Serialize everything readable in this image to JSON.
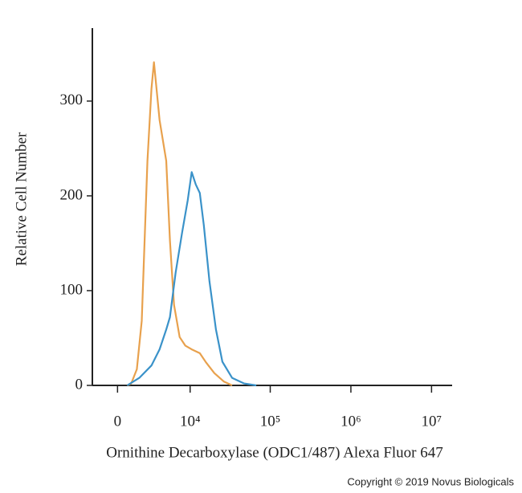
{
  "chart_data": {
    "type": "line",
    "x_label": "Ornithine Decarboxylase (ODC1/487) Alexa Fluor 647",
    "y_label": "Relative Cell Number",
    "copyright": "Copyright © 2019 Novus Biologicals",
    "xscale": "asinh",
    "xlim": [
      -2000,
      18000000
    ],
    "xticks": [
      0,
      {
        "value": 10000,
        "label": "10⁴"
      },
      {
        "value": 100000,
        "label": "10⁵"
      },
      {
        "value": 1000000,
        "label": "10⁶"
      },
      {
        "value": 10000000,
        "label": "10⁷"
      }
    ],
    "ylim": [
      0,
      377
    ],
    "yticks": [
      0,
      100,
      200,
      300
    ],
    "series": [
      {
        "color": "#e8a14d",
        "x": [
          715,
          1027,
          1486,
          1915,
          2459,
          2887,
          3166,
          3866,
          4818,
          5425,
          6153,
          7311,
          8660,
          10481,
          13263,
          15981,
          20175,
          26644,
          33573
        ],
        "values": [
          0,
          2,
          17,
          68,
          237,
          313,
          341,
          280,
          237,
          153,
          85,
          51,
          42,
          38,
          34,
          24,
          13,
          4,
          0
        ]
      },
      {
        "color": "#3a92c9",
        "x": [
          715,
          1694,
          2887,
          3866,
          4818,
          5425,
          6466,
          7865,
          9305,
          10481,
          11795,
          13263,
          14913,
          17551,
          21147,
          25442,
          33573,
          47458,
          67096
        ],
        "values": [
          0,
          8,
          21,
          38,
          59,
          72,
          119,
          161,
          195,
          225,
          212,
          203,
          169,
          110,
          59,
          25,
          8,
          2,
          0
        ]
      }
    ]
  }
}
